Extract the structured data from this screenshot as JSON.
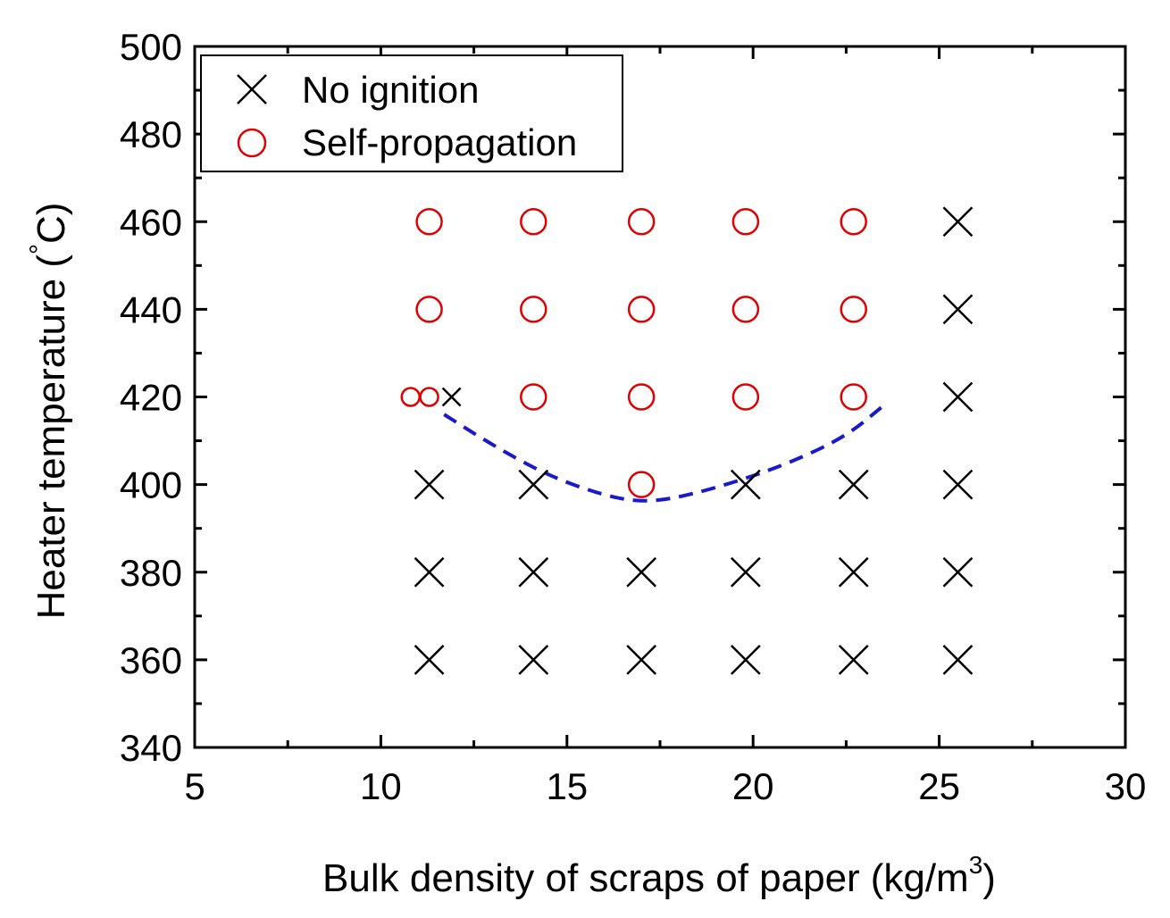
{
  "chart_data": {
    "type": "scatter",
    "xlabel_main": "Bulk density of scraps of paper",
    "xlabel_unit": "(kg/m",
    "xlabel_sup": "3",
    "xlabel_close": ")",
    "ylabel_main": "Heater temperature (",
    "ylabel_deg": "°",
    "ylabel_unit": "C)",
    "xlim": [
      5,
      30
    ],
    "ylim": [
      340,
      500
    ],
    "x_ticks": [
      5,
      10,
      15,
      20,
      25,
      30
    ],
    "x_minor_ticks": [
      7.5,
      12.5,
      17.5,
      22.5,
      27.5
    ],
    "y_ticks": [
      340,
      360,
      380,
      400,
      420,
      440,
      460,
      480,
      500
    ],
    "y_minor_ticks": [
      350,
      370,
      390,
      410,
      430,
      450,
      470,
      490
    ],
    "legend_position": "top-left",
    "series": [
      {
        "name": "No ignition",
        "marker": "x",
        "color": "#000000",
        "points": [
          [
            11.3,
            360
          ],
          [
            14.1,
            360
          ],
          [
            17.0,
            360
          ],
          [
            19.8,
            360
          ],
          [
            22.7,
            360
          ],
          [
            25.5,
            360
          ],
          [
            11.3,
            380
          ],
          [
            14.1,
            380
          ],
          [
            17.0,
            380
          ],
          [
            19.8,
            380
          ],
          [
            22.7,
            380
          ],
          [
            25.5,
            380
          ],
          [
            11.3,
            400
          ],
          [
            14.1,
            400
          ],
          [
            19.8,
            400
          ],
          [
            22.7,
            400
          ],
          [
            25.5,
            400
          ],
          [
            25.5,
            420
          ],
          [
            25.5,
            440
          ],
          [
            25.5,
            460
          ]
        ],
        "small_points": [
          [
            11.9,
            420
          ]
        ]
      },
      {
        "name": "Self-propagation",
        "marker": "o",
        "color": "#e00000",
        "points": [
          [
            17.0,
            400
          ],
          [
            14.1,
            420
          ],
          [
            17.0,
            420
          ],
          [
            19.8,
            420
          ],
          [
            22.7,
            420
          ],
          [
            11.3,
            440
          ],
          [
            14.1,
            440
          ],
          [
            17.0,
            440
          ],
          [
            19.8,
            440
          ],
          [
            22.7,
            440
          ],
          [
            11.3,
            460
          ],
          [
            14.1,
            460
          ],
          [
            17.0,
            460
          ],
          [
            19.8,
            460
          ],
          [
            22.7,
            460
          ]
        ],
        "small_points": [
          [
            10.8,
            420
          ],
          [
            11.3,
            420
          ]
        ]
      }
    ],
    "boundary_curve": {
      "style": "dashed",
      "color": "#1a1acc",
      "points": [
        [
          11.7,
          416
        ],
        [
          13,
          409
        ],
        [
          14.5,
          402
        ],
        [
          16,
          397.5
        ],
        [
          17,
          396
        ],
        [
          18,
          397
        ],
        [
          19.5,
          400.5
        ],
        [
          21,
          405
        ],
        [
          22.5,
          411
        ],
        [
          23.5,
          418
        ]
      ]
    }
  }
}
